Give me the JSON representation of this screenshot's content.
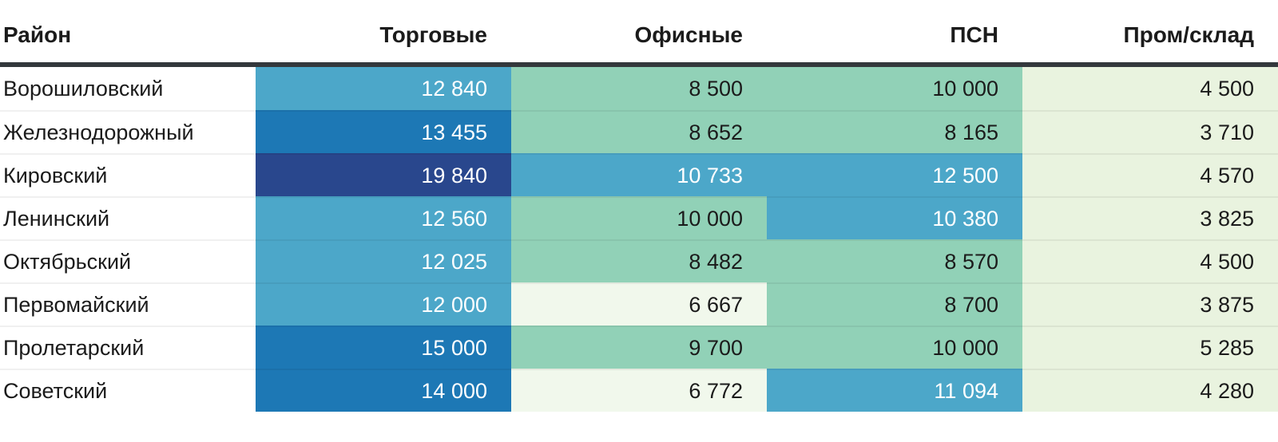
{
  "chart_data": {
    "type": "heatmap",
    "title": "",
    "columns": [
      "Район",
      "Торговые",
      "Офисные",
      "ПСН",
      "Пром/склад"
    ],
    "column_keys": [
      "district",
      "retail",
      "office",
      "psn",
      "industrial"
    ],
    "legend_position": "none",
    "palette": {
      "navy": "#29478D",
      "blue": "#1D78B5",
      "teal": "#4CA7C9",
      "green": "#91D1B7",
      "lightest": "#F1F8EC",
      "light": "#E9F3DF",
      "header_rule": "#33383C",
      "text_dark": "#1B1B1B",
      "text_light": "#FFFFFF"
    },
    "rows": [
      {
        "district": "Ворошиловский",
        "cells": [
          {
            "value": 12840,
            "display": "12 840",
            "bg": "#4CA7C9",
            "text": "#FFFFFF"
          },
          {
            "value": 8500,
            "display": "8 500",
            "bg": "#91D1B7",
            "text": "#1B1B1B"
          },
          {
            "value": 10000,
            "display": "10 000",
            "bg": "#91D1B7",
            "text": "#1B1B1B"
          },
          {
            "value": 4500,
            "display": "4 500",
            "bg": "#E9F3DF",
            "text": "#1B1B1B"
          }
        ]
      },
      {
        "district": "Железнодорожный",
        "cells": [
          {
            "value": 13455,
            "display": "13 455",
            "bg": "#1D78B5",
            "text": "#FFFFFF"
          },
          {
            "value": 8652,
            "display": "8 652",
            "bg": "#91D1B7",
            "text": "#1B1B1B"
          },
          {
            "value": 8165,
            "display": "8 165",
            "bg": "#91D1B7",
            "text": "#1B1B1B"
          },
          {
            "value": 3710,
            "display": "3 710",
            "bg": "#E9F3DF",
            "text": "#1B1B1B"
          }
        ]
      },
      {
        "district": "Кировский",
        "cells": [
          {
            "value": 19840,
            "display": "19 840",
            "bg": "#29478D",
            "text": "#FFFFFF"
          },
          {
            "value": 10733,
            "display": "10 733",
            "bg": "#4CA7C9",
            "text": "#FFFFFF"
          },
          {
            "value": 12500,
            "display": "12 500",
            "bg": "#4CA7C9",
            "text": "#FFFFFF"
          },
          {
            "value": 4570,
            "display": "4 570",
            "bg": "#E9F3DF",
            "text": "#1B1B1B"
          }
        ]
      },
      {
        "district": "Ленинский",
        "cells": [
          {
            "value": 12560,
            "display": "12 560",
            "bg": "#4CA7C9",
            "text": "#FFFFFF"
          },
          {
            "value": 10000,
            "display": "10 000",
            "bg": "#91D1B7",
            "text": "#1B1B1B"
          },
          {
            "value": 10380,
            "display": "10 380",
            "bg": "#4CA7C9",
            "text": "#FFFFFF"
          },
          {
            "value": 3825,
            "display": "3 825",
            "bg": "#E9F3DF",
            "text": "#1B1B1B"
          }
        ]
      },
      {
        "district": "Октябрьский",
        "cells": [
          {
            "value": 12025,
            "display": "12 025",
            "bg": "#4CA7C9",
            "text": "#FFFFFF"
          },
          {
            "value": 8482,
            "display": "8 482",
            "bg": "#91D1B7",
            "text": "#1B1B1B"
          },
          {
            "value": 8570,
            "display": "8 570",
            "bg": "#91D1B7",
            "text": "#1B1B1B"
          },
          {
            "value": 4500,
            "display": "4 500",
            "bg": "#E9F3DF",
            "text": "#1B1B1B"
          }
        ]
      },
      {
        "district": "Первомайский",
        "cells": [
          {
            "value": 12000,
            "display": "12 000",
            "bg": "#4CA7C9",
            "text": "#FFFFFF"
          },
          {
            "value": 6667,
            "display": "6 667",
            "bg": "#F1F8EC",
            "text": "#1B1B1B"
          },
          {
            "value": 8700,
            "display": "8 700",
            "bg": "#91D1B7",
            "text": "#1B1B1B"
          },
          {
            "value": 3875,
            "display": "3 875",
            "bg": "#E9F3DF",
            "text": "#1B1B1B"
          }
        ]
      },
      {
        "district": "Пролетарский",
        "cells": [
          {
            "value": 15000,
            "display": "15 000",
            "bg": "#1D78B5",
            "text": "#FFFFFF"
          },
          {
            "value": 9700,
            "display": "9 700",
            "bg": "#91D1B7",
            "text": "#1B1B1B"
          },
          {
            "value": 10000,
            "display": "10 000",
            "bg": "#91D1B7",
            "text": "#1B1B1B"
          },
          {
            "value": 5285,
            "display": "5 285",
            "bg": "#E9F3DF",
            "text": "#1B1B1B"
          }
        ]
      },
      {
        "district": "Советский",
        "cells": [
          {
            "value": 14000,
            "display": "14 000",
            "bg": "#1D78B5",
            "text": "#FFFFFF"
          },
          {
            "value": 6772,
            "display": "6 772",
            "bg": "#F1F8EC",
            "text": "#1B1B1B"
          },
          {
            "value": 11094,
            "display": "11 094",
            "bg": "#4CA7C9",
            "text": "#FFFFFF"
          },
          {
            "value": 4280,
            "display": "4 280",
            "bg": "#E9F3DF",
            "text": "#1B1B1B"
          }
        ]
      }
    ]
  }
}
